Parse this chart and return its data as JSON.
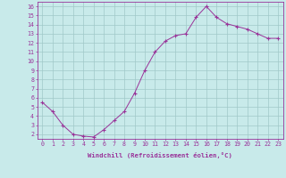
{
  "x": [
    0,
    1,
    2,
    3,
    4,
    5,
    6,
    7,
    8,
    9,
    10,
    11,
    12,
    13,
    14,
    15,
    16,
    17,
    18,
    19,
    20,
    21,
    22,
    23
  ],
  "y": [
    5.5,
    4.5,
    3.0,
    2.0,
    1.8,
    1.7,
    2.5,
    3.5,
    4.5,
    6.5,
    9.0,
    11.0,
    12.2,
    12.8,
    13.0,
    14.8,
    16.0,
    14.8,
    14.1,
    13.8,
    13.5,
    13.0,
    12.5,
    12.5
  ],
  "line_color": "#993399",
  "marker": "+",
  "marker_size": 3.0,
  "bg_color": "#c8eaea",
  "grid_color": "#a0c8c8",
  "xlabel": "Windchill (Refroidissement éolien,°C)",
  "ylabel_ticks": [
    2,
    3,
    4,
    5,
    6,
    7,
    8,
    9,
    10,
    11,
    12,
    13,
    14,
    15,
    16
  ],
  "xlim": [
    -0.5,
    23.5
  ],
  "ylim": [
    1.5,
    16.5
  ],
  "xticks": [
    0,
    1,
    2,
    3,
    4,
    5,
    6,
    7,
    8,
    9,
    10,
    11,
    12,
    13,
    14,
    15,
    16,
    17,
    18,
    19,
    20,
    21,
    22,
    23
  ],
  "tick_color": "#993399",
  "label_color": "#993399",
  "axis_color": "#993399",
  "font_size": 4.8,
  "xlabel_font_size": 5.2,
  "linewidth": 0.7,
  "marker_lw": 0.8
}
